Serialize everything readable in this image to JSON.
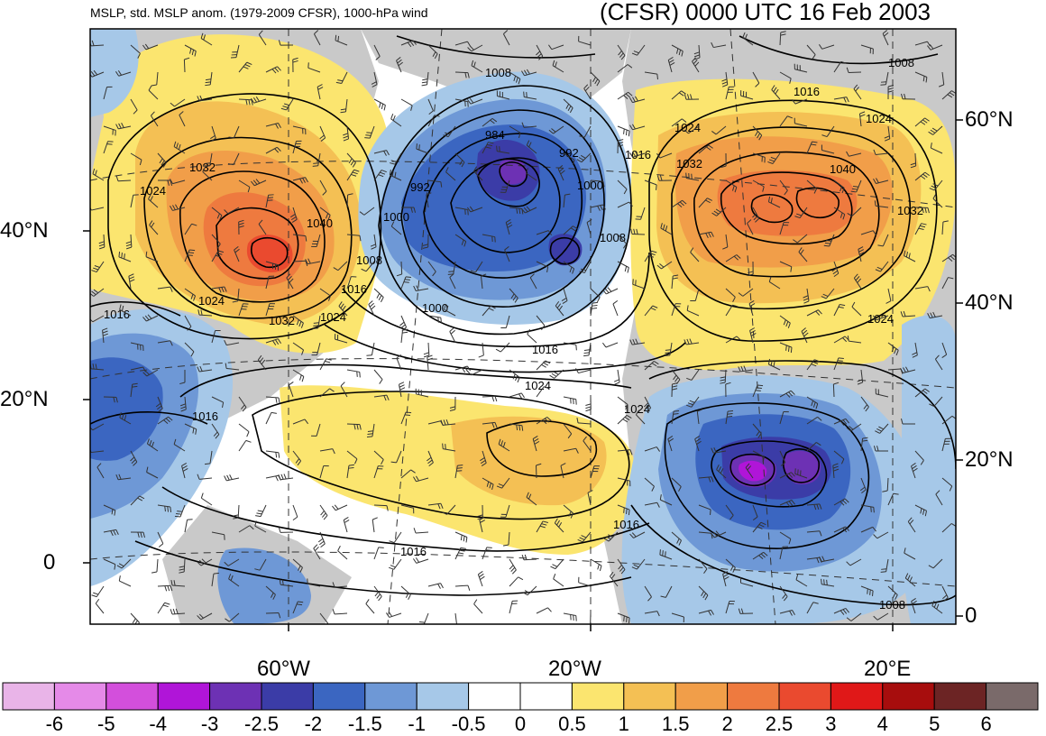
{
  "header": {
    "left_title": "MSLP, std. MSLP anom. (1979-2009 CFSR), 1000-hPa wind",
    "right_title": "(CFSR) 0000 UTC 16 Feb 2003"
  },
  "axes": {
    "lat_left": [
      "40°N",
      "20°N",
      "0"
    ],
    "lat_right": [
      "60°N",
      "40°N",
      "20°N",
      "0"
    ],
    "lon_bottom": [
      "60°W",
      "20°W",
      "20°E"
    ]
  },
  "isobar_labels": [
    "1008",
    "984",
    "992",
    "1008",
    "1032",
    "1024",
    "992",
    "1000",
    "1040",
    "1000",
    "1008",
    "1008",
    "1016",
    "1024",
    "1016",
    "1000",
    "1024",
    "1032",
    "1024",
    "1016",
    "1024",
    "1024",
    "1016",
    "1016",
    "1016",
    "1008",
    "1016",
    "1024",
    "1032",
    "1040",
    "1032",
    "1024",
    "1016"
  ],
  "colorbar": {
    "labels": [
      "-6",
      "-5",
      "-4",
      "-3",
      "-2.5",
      "-2",
      "-1.5",
      "-1",
      "-0.5",
      "0",
      "0.5",
      "1",
      "1.5",
      "2",
      "2.5",
      "3",
      "4",
      "5",
      "6"
    ],
    "colors": [
      "#e9b4e8",
      "#e58ae8",
      "#d34fdc",
      "#b015d8",
      "#6d31b4",
      "#3b3ca7",
      "#3b66c1",
      "#6e98d6",
      "#a6c8e8",
      "#ffffff",
      "#ffffff",
      "#fbe56f",
      "#f4c054",
      "#f19e49",
      "#ee7a3f",
      "#ea4a2f",
      "#e01818",
      "#a70d0d",
      "#6c2424",
      "#7a6a6a"
    ]
  }
}
